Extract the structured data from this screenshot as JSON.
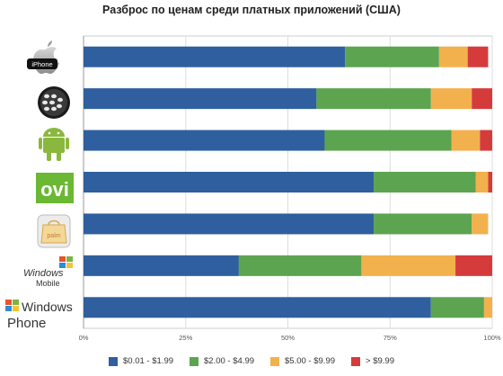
{
  "chart_data": {
    "type": "bar",
    "orientation": "horizontal",
    "stacked": true,
    "title": "Разброс по ценам среди платных приложений (США)",
    "categories": [
      "iPhone",
      "BlackBerry",
      "Android",
      "Ovi",
      "Palm",
      "Windows Mobile",
      "Windows Phone"
    ],
    "series": [
      {
        "name": "$0.01 - $1.99",
        "color": "#2f5f9e",
        "values": [
          64,
          57,
          59,
          71,
          71,
          38,
          85
        ]
      },
      {
        "name": "$2.00 - $4.99",
        "color": "#5da450",
        "values": [
          23,
          28,
          31,
          25,
          24,
          30,
          13
        ]
      },
      {
        "name": "$5.00 - $9.99",
        "color": "#f2b14c",
        "values": [
          7,
          10,
          7,
          3,
          4,
          23,
          2
        ]
      },
      {
        "name": "> $9.99",
        "color": "#d53b3b",
        "values": [
          5,
          5,
          3,
          1,
          0,
          9,
          0
        ]
      }
    ],
    "x_ticks": [
      "0%",
      "25%",
      "50%",
      "75%",
      "100%"
    ],
    "xlim": [
      0,
      100
    ],
    "grid": true,
    "legend_position": "bottom"
  },
  "logos": {
    "iphone": {
      "text": "iPhone",
      "icon": "apple-icon"
    },
    "blackberry": {
      "icon": "blackberry-icon"
    },
    "android": {
      "icon": "android-robot-icon"
    },
    "ovi": {
      "text": "ovi",
      "icon": "ovi-icon"
    },
    "palm": {
      "text": "palm",
      "icon": "palm-bag-icon"
    },
    "windows_mobile": {
      "line1": "Windows",
      "line2": "Mobile",
      "icon": "windows-flag-icon"
    },
    "windows_phone": {
      "line1": "Windows",
      "line2": "Phone",
      "icon": "windows-flag-icon"
    }
  }
}
